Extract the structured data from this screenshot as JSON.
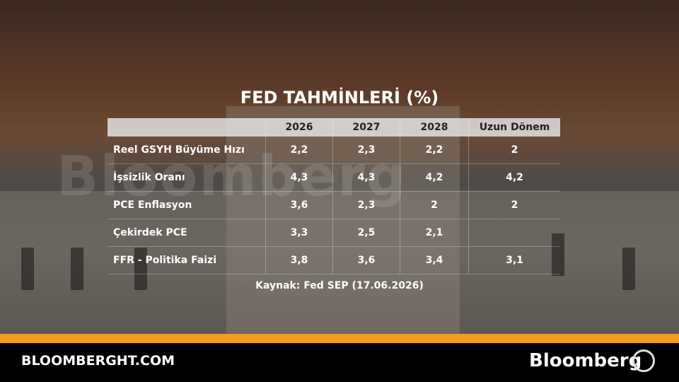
{
  "header": {
    "title": "FED TAHMİNLERİ (%)"
  },
  "table": {
    "columns": [
      "2026",
      "2027",
      "2028",
      "Uzun Dönem"
    ],
    "rows": [
      {
        "label": "Reel GSYH Büyüme Hızı",
        "cells": [
          "2,2",
          "2,3",
          "2,2",
          "2"
        ]
      },
      {
        "label": "İşsizlik Oranı",
        "cells": [
          "4,3",
          "4,3",
          "4,2",
          "4,2"
        ]
      },
      {
        "label": "PCE Enflasyon",
        "cells": [
          "3,6",
          "2,3",
          "2",
          "2"
        ]
      },
      {
        "label": "Çekirdek PCE",
        "cells": [
          "3,3",
          "2,5",
          "2,1",
          null
        ]
      },
      {
        "label": "FFR - Politika Faizi",
        "cells": [
          "3,8",
          "3,6",
          "3,4",
          "3,1"
        ]
      }
    ]
  },
  "source": "Kaynak: Fed SEP (17.06.2026)",
  "watermark": "Bloomberg",
  "footer": {
    "site": "BLOOMBERGHT.COM",
    "brand": "Bloomberg"
  }
}
